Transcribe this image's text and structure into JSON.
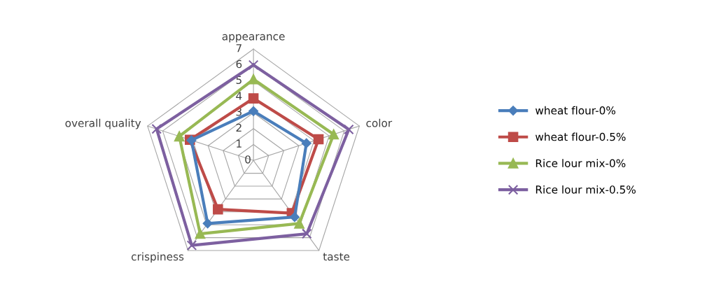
{
  "chart_data": {
    "type": "radar",
    "categories": [
      "appearance",
      "color",
      "taste",
      "crispiness",
      "overall quality"
    ],
    "ylim": [
      0,
      7
    ],
    "yticks": [
      0,
      1,
      2,
      3,
      4,
      5,
      6,
      7
    ],
    "grid": true,
    "legend": "right",
    "series": [
      {
        "name": "wheat flour-0%",
        "color": "#4a7ebb",
        "marker": "diamond",
        "values": [
          3.1,
          3.5,
          4.4,
          4.9,
          4.1
        ]
      },
      {
        "name": "wheat flour-0.5%",
        "color": "#be4b48",
        "marker": "square",
        "values": [
          3.9,
          4.3,
          4.1,
          3.8,
          4.2
        ]
      },
      {
        "name": "Rice lour mix-0%",
        "color": "#98b954",
        "marker": "triangle",
        "values": [
          5.1,
          5.3,
          4.9,
          5.7,
          4.9
        ]
      },
      {
        "name": "Rice lour mix-0.5%",
        "color": "#7d60a0",
        "marker": "cross",
        "values": [
          6.0,
          6.3,
          5.7,
          6.6,
          6.4
        ]
      }
    ]
  }
}
